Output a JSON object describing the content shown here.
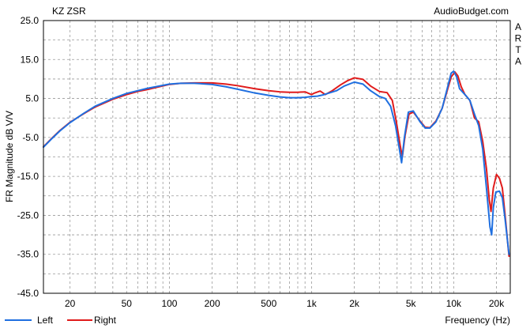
{
  "chart_data": {
    "type": "line",
    "title": "KZ ZSR",
    "watermark": "AudioBudget.com",
    "side_label": [
      "A",
      "R",
      "T",
      "A"
    ],
    "xlabel": "Frequency (Hz)",
    "ylabel": "FR Magnitude dB V/V",
    "x_scale": "log",
    "xlim": [
      13,
      25000
    ],
    "ylim": [
      -45,
      25
    ],
    "x_ticks": [
      {
        "value": 20,
        "label": "20"
      },
      {
        "value": 50,
        "label": "50"
      },
      {
        "value": 100,
        "label": "100"
      },
      {
        "value": 200,
        "label": "200"
      },
      {
        "value": 500,
        "label": "500"
      },
      {
        "value": 1000,
        "label": "1k"
      },
      {
        "value": 2000,
        "label": "2k"
      },
      {
        "value": 5000,
        "label": "5k"
      },
      {
        "value": 10000,
        "label": "10k"
      },
      {
        "value": 20000,
        "label": "20k"
      }
    ],
    "y_ticks": [
      {
        "value": 25,
        "label": "25.0"
      },
      {
        "value": 15,
        "label": "15.0"
      },
      {
        "value": 5,
        "label": "5.0"
      },
      {
        "value": -5,
        "label": "-5.0"
      },
      {
        "value": -15,
        "label": "-15.0"
      },
      {
        "value": -25,
        "label": "-25.0"
      },
      {
        "value": -35,
        "label": "-35.0"
      },
      {
        "value": -45,
        "label": "-45.0"
      }
    ],
    "grid": true,
    "legend_position": "bottom-left",
    "series": [
      {
        "name": "Left",
        "color": "#1f6fe0",
        "points": [
          [
            13,
            -7.5
          ],
          [
            15,
            -5.2
          ],
          [
            17,
            -3.3
          ],
          [
            20,
            -1.2
          ],
          [
            25,
            1.2
          ],
          [
            30,
            3.0
          ],
          [
            40,
            5.0
          ],
          [
            50,
            6.3
          ],
          [
            60,
            7.0
          ],
          [
            70,
            7.6
          ],
          [
            80,
            8.0
          ],
          [
            100,
            8.7
          ],
          [
            120,
            8.9
          ],
          [
            150,
            8.9
          ],
          [
            200,
            8.6
          ],
          [
            250,
            8.0
          ],
          [
            300,
            7.4
          ],
          [
            400,
            6.4
          ],
          [
            500,
            5.8
          ],
          [
            600,
            5.4
          ],
          [
            700,
            5.2
          ],
          [
            800,
            5.2
          ],
          [
            900,
            5.3
          ],
          [
            1000,
            5.5
          ],
          [
            1100,
            5.6
          ],
          [
            1200,
            5.9
          ],
          [
            1300,
            6.3
          ],
          [
            1500,
            7.0
          ],
          [
            1700,
            8.2
          ],
          [
            2000,
            9.2
          ],
          [
            2300,
            8.7
          ],
          [
            2600,
            7.0
          ],
          [
            3000,
            5.5
          ],
          [
            3300,
            5.0
          ],
          [
            3600,
            3.0
          ],
          [
            3900,
            -2.0
          ],
          [
            4150,
            -8.0
          ],
          [
            4300,
            -11.5
          ],
          [
            4500,
            -5.0
          ],
          [
            4800,
            1.5
          ],
          [
            5200,
            1.8
          ],
          [
            5800,
            -1.0
          ],
          [
            6300,
            -2.6
          ],
          [
            6800,
            -2.6
          ],
          [
            7500,
            -1.0
          ],
          [
            8300,
            2.5
          ],
          [
            9000,
            7.5
          ],
          [
            9600,
            11.5
          ],
          [
            10000,
            12.0
          ],
          [
            10500,
            10.5
          ],
          [
            11000,
            7.5
          ],
          [
            12000,
            6.0
          ],
          [
            13000,
            4.5
          ],
          [
            14000,
            1.0
          ],
          [
            15000,
            -2.0
          ],
          [
            16000,
            -8.0
          ],
          [
            17000,
            -18.0
          ],
          [
            18000,
            -28.0
          ],
          [
            18500,
            -30.0
          ],
          [
            19000,
            -23.0
          ],
          [
            19800,
            -19.0
          ],
          [
            21000,
            -18.8
          ],
          [
            22000,
            -20.5
          ],
          [
            23000,
            -26.0
          ],
          [
            24500,
            -35.0
          ]
        ]
      },
      {
        "name": "Right",
        "color": "#e01b1b",
        "points": [
          [
            13,
            -7.4
          ],
          [
            15,
            -5.1
          ],
          [
            17,
            -3.2
          ],
          [
            20,
            -1.1
          ],
          [
            25,
            1.1
          ],
          [
            30,
            2.8
          ],
          [
            40,
            4.8
          ],
          [
            50,
            6.0
          ],
          [
            60,
            6.8
          ],
          [
            70,
            7.3
          ],
          [
            80,
            7.8
          ],
          [
            100,
            8.6
          ],
          [
            120,
            8.9
          ],
          [
            150,
            9.0
          ],
          [
            200,
            9.0
          ],
          [
            250,
            8.7
          ],
          [
            300,
            8.3
          ],
          [
            400,
            7.5
          ],
          [
            500,
            7.0
          ],
          [
            600,
            6.7
          ],
          [
            700,
            6.6
          ],
          [
            800,
            6.6
          ],
          [
            900,
            6.7
          ],
          [
            1000,
            6.0
          ],
          [
            1050,
            6.4
          ],
          [
            1150,
            6.9
          ],
          [
            1250,
            6.0
          ],
          [
            1400,
            7.0
          ],
          [
            1600,
            8.5
          ],
          [
            1800,
            9.6
          ],
          [
            2000,
            10.3
          ],
          [
            2300,
            9.9
          ],
          [
            2600,
            8.2
          ],
          [
            3000,
            6.8
          ],
          [
            3400,
            6.5
          ],
          [
            3700,
            4.5
          ],
          [
            3950,
            -1.0
          ],
          [
            4200,
            -7.0
          ],
          [
            4350,
            -10.0
          ],
          [
            4550,
            -4.5
          ],
          [
            4850,
            1.0
          ],
          [
            5200,
            1.5
          ],
          [
            5800,
            -0.8
          ],
          [
            6300,
            -2.4
          ],
          [
            6800,
            -2.5
          ],
          [
            7500,
            -0.8
          ],
          [
            8300,
            2.5
          ],
          [
            9000,
            7.0
          ],
          [
            9600,
            10.5
          ],
          [
            10200,
            11.8
          ],
          [
            10700,
            10.8
          ],
          [
            11300,
            8.0
          ],
          [
            12000,
            6.0
          ],
          [
            13000,
            4.5
          ],
          [
            14000,
            0.0
          ],
          [
            15000,
            -1.0
          ],
          [
            16000,
            -6.0
          ],
          [
            17000,
            -13.0
          ],
          [
            17800,
            -21.0
          ],
          [
            18300,
            -24.0
          ],
          [
            19000,
            -18.0
          ],
          [
            20000,
            -14.5
          ],
          [
            21000,
            -15.5
          ],
          [
            22000,
            -18.0
          ],
          [
            23000,
            -25.0
          ],
          [
            24500,
            -35.5
          ]
        ]
      }
    ]
  }
}
